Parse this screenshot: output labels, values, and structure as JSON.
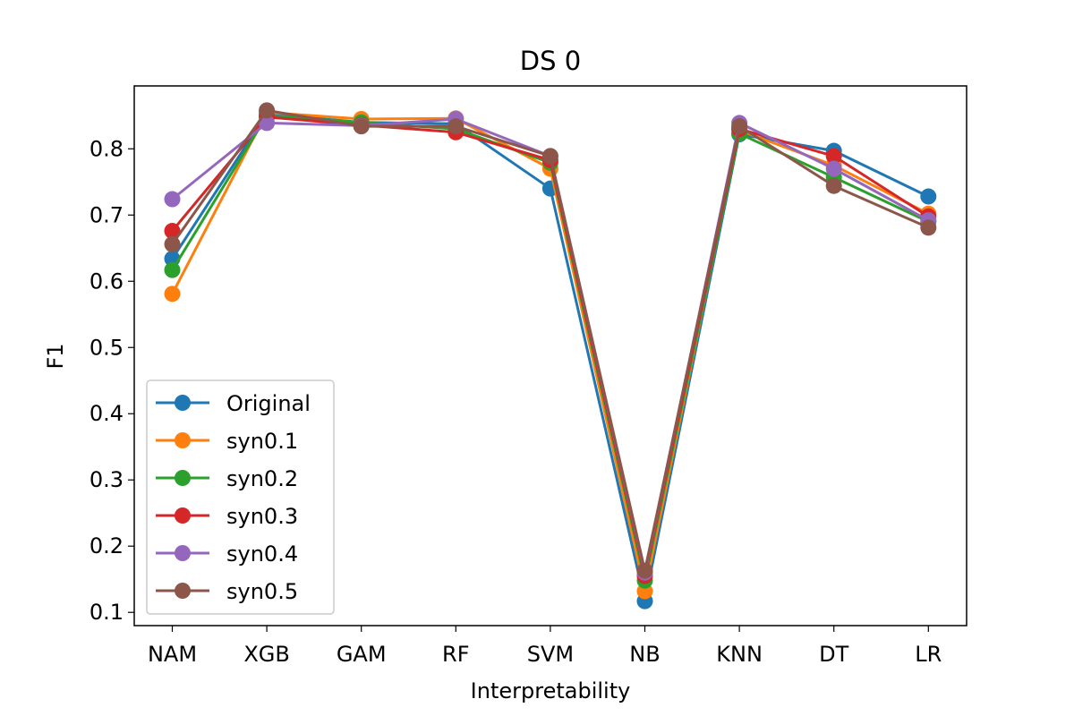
{
  "chart_data": {
    "type": "line",
    "title": "DS 0",
    "xlabel": "Interpretability",
    "ylabel": "F1",
    "categories": [
      "NAM",
      "XGB",
      "GAM",
      "RF",
      "SVM",
      "NB",
      "KNN",
      "DT",
      "LR"
    ],
    "ylim": [
      0.08,
      0.895
    ],
    "yticks": [
      "0.1",
      "0.2",
      "0.3",
      "0.4",
      "0.5",
      "0.6",
      "0.7",
      "0.8"
    ],
    "grid": false,
    "legend_position": "lower-left",
    "series": [
      {
        "name": "Original",
        "color": "#1f77b4",
        "values": [
          0.634,
          0.853,
          0.84,
          0.838,
          0.74,
          0.117,
          0.822,
          0.797,
          0.728
        ]
      },
      {
        "name": "syn0.1",
        "color": "#ff7f0e",
        "values": [
          0.581,
          0.855,
          0.845,
          0.846,
          0.77,
          0.132,
          0.828,
          0.775,
          0.702
        ]
      },
      {
        "name": "syn0.2",
        "color": "#2ca02c",
        "values": [
          0.617,
          0.85,
          0.84,
          0.83,
          0.779,
          0.148,
          0.823,
          0.757,
          0.69
        ]
      },
      {
        "name": "syn0.3",
        "color": "#d62728",
        "values": [
          0.676,
          0.848,
          0.836,
          0.825,
          0.783,
          0.155,
          0.83,
          0.789,
          0.698
        ]
      },
      {
        "name": "syn0.4",
        "color": "#9467bd",
        "values": [
          0.724,
          0.839,
          0.835,
          0.845,
          0.789,
          0.16,
          0.839,
          0.77,
          0.692
        ]
      },
      {
        "name": "syn0.5",
        "color": "#8c564b",
        "values": [
          0.656,
          0.858,
          0.834,
          0.834,
          0.789,
          0.163,
          0.834,
          0.744,
          0.681
        ]
      }
    ]
  }
}
